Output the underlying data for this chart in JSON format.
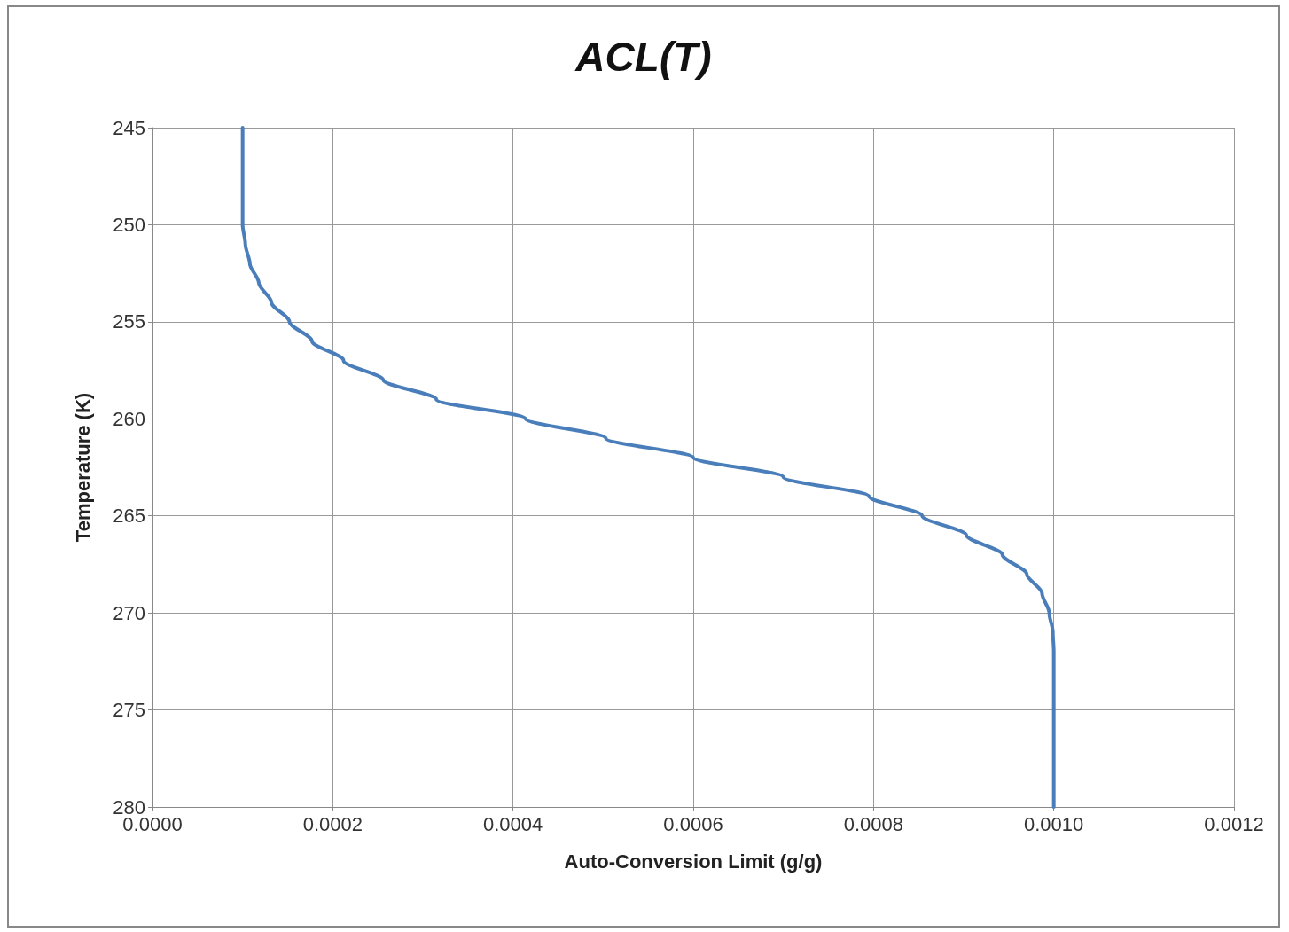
{
  "chart_data": {
    "type": "line",
    "title": "ACL(T)",
    "xlabel": "Auto-Conversion Limit (g/g)",
    "ylabel": "Temperature (K)",
    "x": [
      0.0001,
      0.0001,
      0.000103,
      0.000108,
      0.000118,
      0.000132,
      0.000152,
      0.000177,
      0.000212,
      0.000256,
      0.000315,
      0.000414,
      0.000503,
      0.0006,
      0.0007,
      0.000795,
      0.000854,
      0.000903,
      0.000943,
      0.00097,
      0.000987,
      0.000995,
      0.000999,
      0.001,
      0.001
    ],
    "series": [
      {
        "color": "#4a7ebb",
        "values": [
          245,
          250,
          251,
          252,
          253,
          254,
          255,
          256,
          257,
          258,
          259,
          260,
          261,
          262,
          263,
          264,
          265,
          266,
          267,
          268,
          269,
          270,
          271,
          272,
          280
        ]
      }
    ],
    "xlim": [
      0,
      0.0012
    ],
    "xticks": [
      {
        "value": 0,
        "label": "0.0000"
      },
      {
        "value": 0.0002,
        "label": "0.0002"
      },
      {
        "value": 0.0004,
        "label": "0.0004"
      },
      {
        "value": 0.0006,
        "label": "0.0006"
      },
      {
        "value": 0.0008,
        "label": "0.0008"
      },
      {
        "value": 0.001,
        "label": "0.0010"
      },
      {
        "value": 0.0012,
        "label": "0.0012"
      }
    ],
    "ylim": [
      280,
      245
    ],
    "yticks": [
      245,
      250,
      255,
      260,
      265,
      270,
      275,
      280
    ],
    "grid": true,
    "marker": "none",
    "line_style": "solid"
  }
}
